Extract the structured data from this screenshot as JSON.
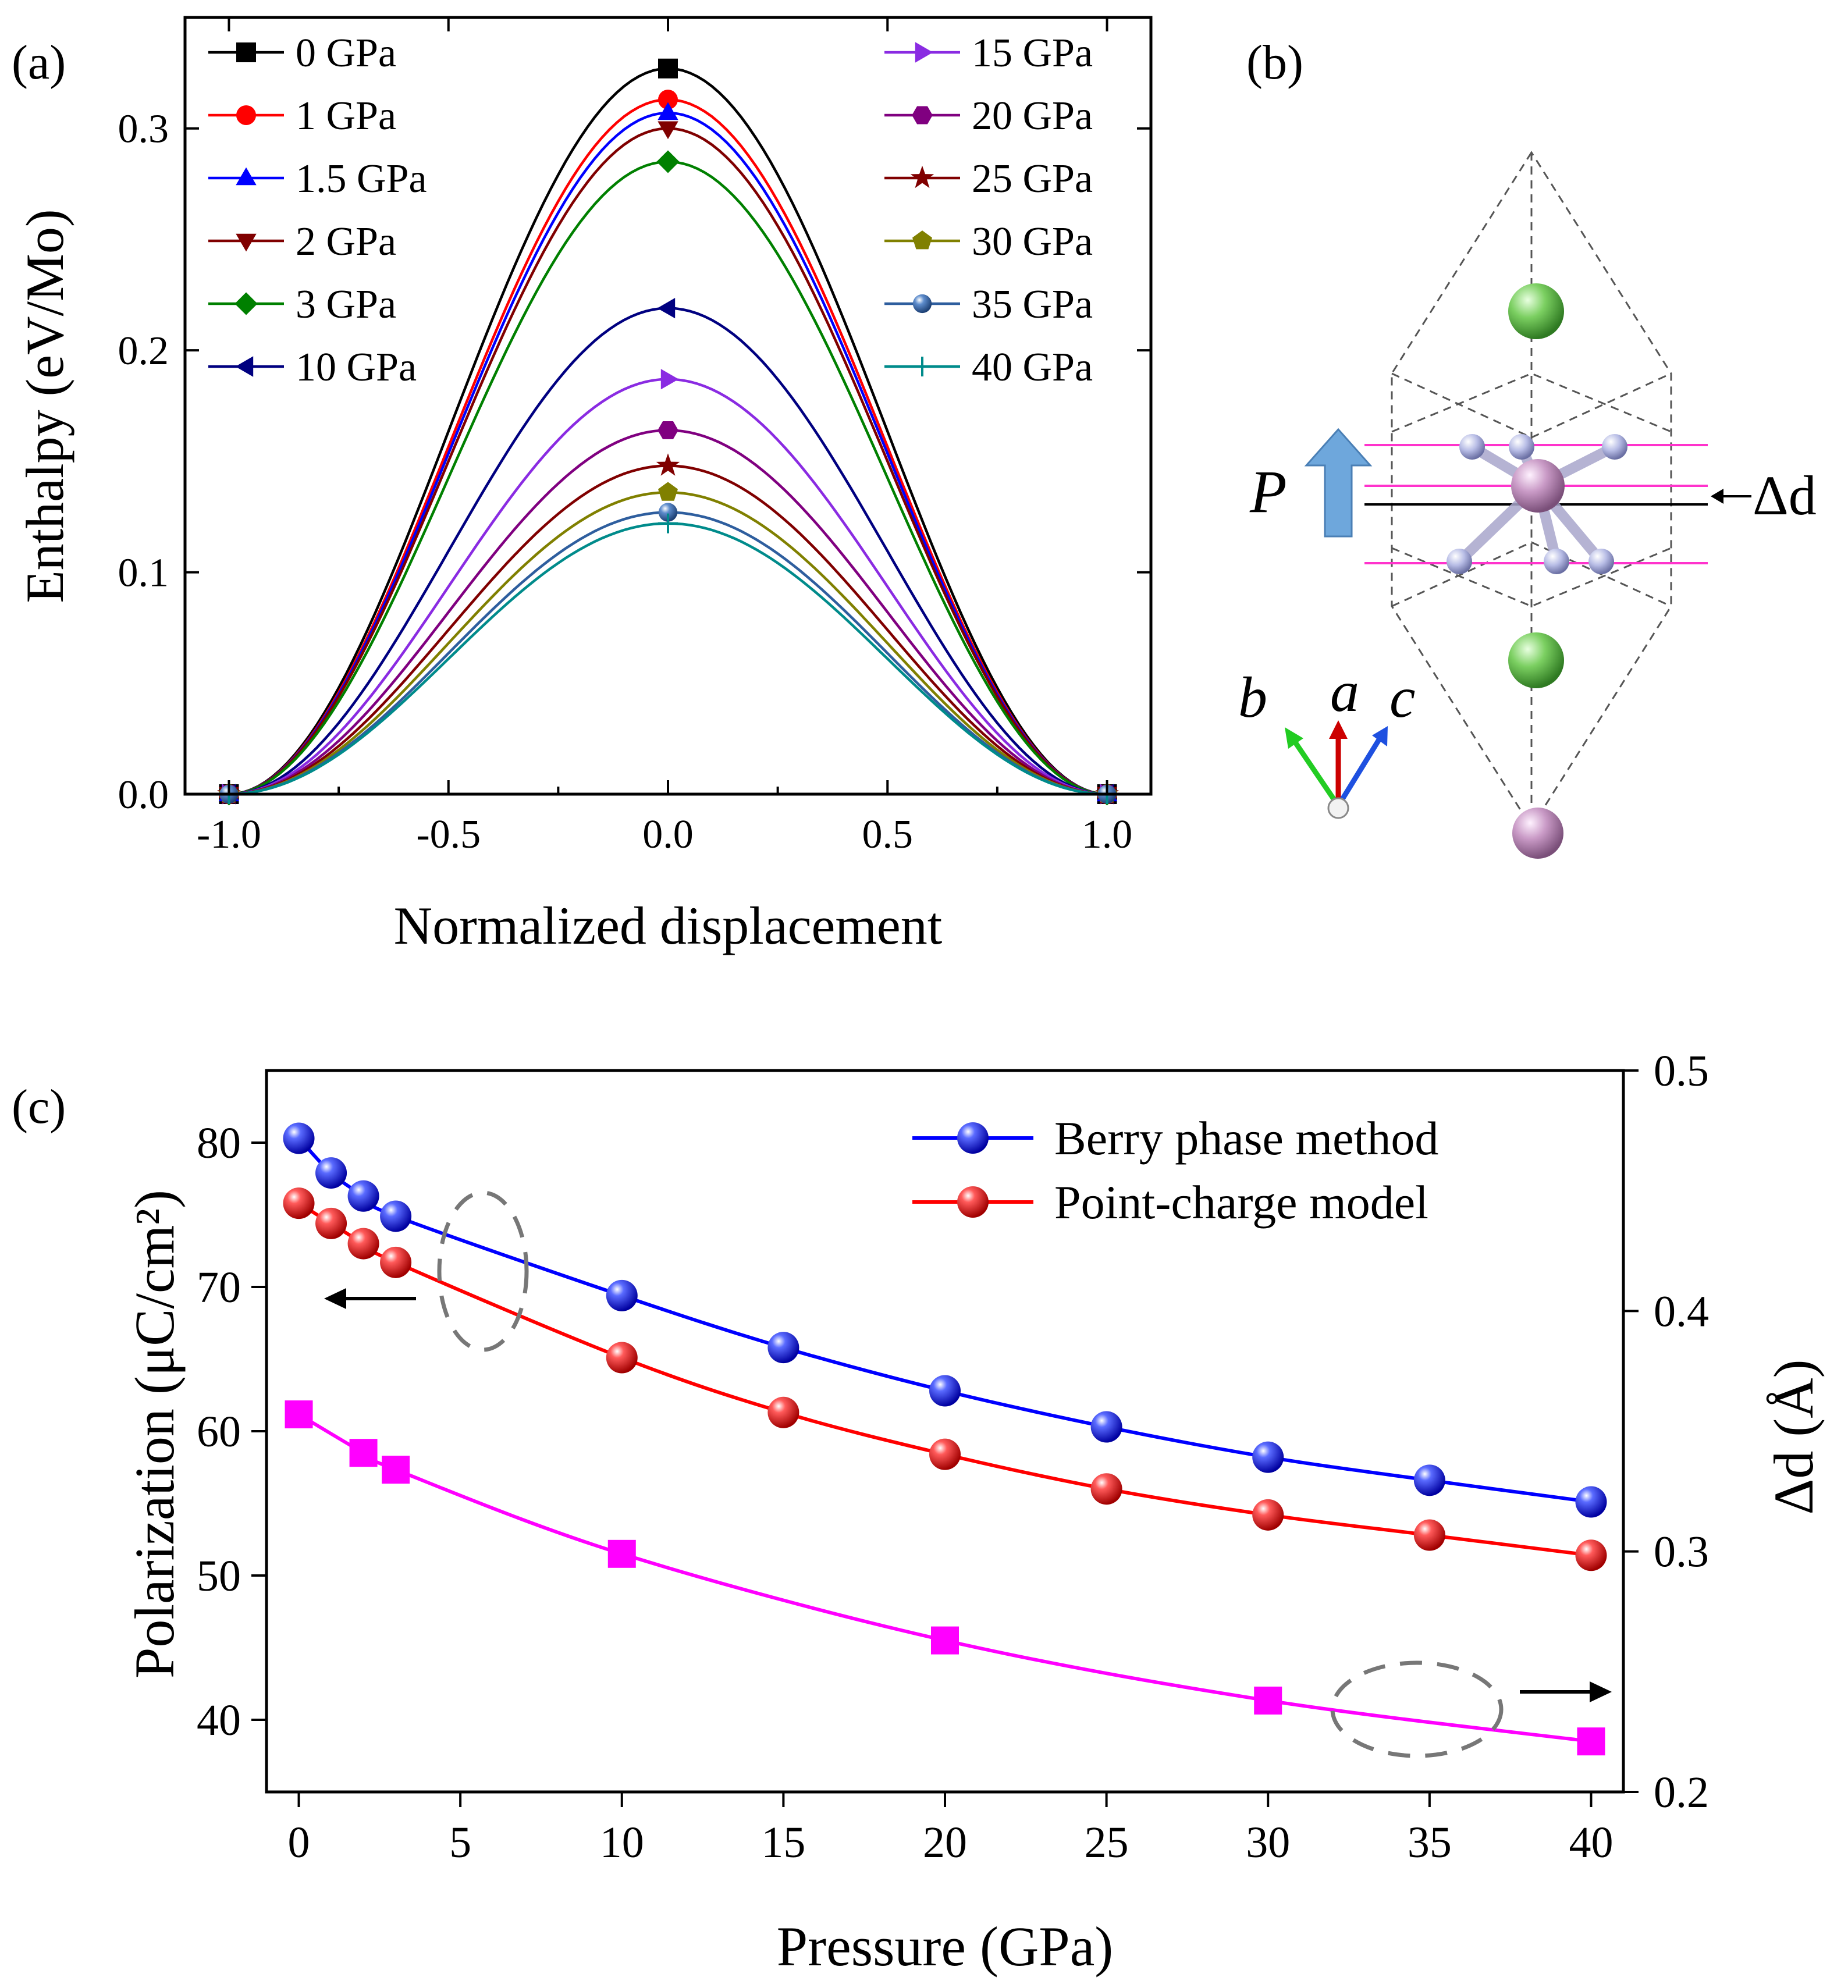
{
  "chart_data": [
    {
      "panel": "(a)",
      "type": "line",
      "xlabel": "Normalized displacement",
      "ylabel": "Enthalpy (eV/Mo)",
      "xlim": [
        -1.1,
        1.1
      ],
      "ylim": [
        0.0,
        0.35
      ],
      "xticks": [
        "-1.0",
        "-0.5",
        "0.0",
        "0.5",
        "1.0"
      ],
      "yticks": [
        "0.0",
        "0.1",
        "0.2",
        "0.3"
      ],
      "x": [
        -1.0,
        0.0,
        1.0
      ],
      "series": [
        {
          "name": "0 GPa",
          "peak": 0.327,
          "color": "#000000",
          "marker": "square"
        },
        {
          "name": "1 GPa",
          "peak": 0.313,
          "color": "#ff0000",
          "marker": "circle"
        },
        {
          "name": "1.5 GPa",
          "peak": 0.307,
          "color": "#0000ff",
          "marker": "triangle-up"
        },
        {
          "name": "2 GPa",
          "peak": 0.3,
          "color": "#800000",
          "marker": "triangle-down"
        },
        {
          "name": "3 GPa",
          "peak": 0.285,
          "color": "#008000",
          "marker": "diamond"
        },
        {
          "name": "10 GPa",
          "peak": 0.219,
          "color": "#000080",
          "marker": "triangle-left"
        },
        {
          "name": "15 GPa",
          "peak": 0.187,
          "color": "#8a2be2",
          "marker": "triangle-right"
        },
        {
          "name": "20 GPa",
          "peak": 0.164,
          "color": "#800080",
          "marker": "hexagon"
        },
        {
          "name": "25 GPa",
          "peak": 0.148,
          "color": "#800000",
          "marker": "star"
        },
        {
          "name": "30 GPa",
          "peak": 0.136,
          "color": "#808000",
          "marker": "pentagon"
        },
        {
          "name": "35 GPa",
          "peak": 0.127,
          "color": "#2e5e9e",
          "marker": "sphere"
        },
        {
          "name": "40 GPa",
          "peak": 0.122,
          "color": "#008b8b",
          "marker": "plus"
        }
      ]
    },
    {
      "panel": "(c)",
      "type": "line",
      "xlabel": "Pressure (GPa)",
      "ylabel": "Polarization (μC/cm²)",
      "y2label": "Δd (Å)",
      "xlim": [
        -1,
        41
      ],
      "ylim": [
        35,
        85
      ],
      "y2lim": [
        0.2,
        0.5
      ],
      "xticks": [
        "0",
        "5",
        "10",
        "15",
        "20",
        "25",
        "30",
        "35",
        "40"
      ],
      "yticks": [
        "40",
        "50",
        "60",
        "70",
        "80"
      ],
      "y2ticks": [
        "0.2",
        "0.3",
        "0.4",
        "0.5"
      ],
      "x": [
        0,
        1,
        2,
        3,
        10,
        15,
        20,
        25,
        30,
        35,
        40
      ],
      "series": [
        {
          "name": "Berry phase method",
          "axis": "left",
          "color": "#0000ff",
          "values": [
            80.3,
            77.9,
            76.3,
            74.9,
            69.4,
            65.8,
            62.8,
            60.3,
            58.2,
            56.6,
            55.1
          ]
        },
        {
          "name": "Point-charge model",
          "axis": "left",
          "color": "#ff0000",
          "values": [
            75.8,
            74.4,
            73.0,
            71.7,
            65.1,
            61.3,
            58.4,
            56.0,
            54.2,
            52.8,
            51.4
          ]
        },
        {
          "name": "Δd",
          "axis": "right",
          "color": "#ff00ff",
          "x": [
            0,
            2,
            3,
            10,
            20,
            30,
            40
          ],
          "values": [
            0.357,
            0.341,
            0.334,
            0.299,
            0.263,
            0.238,
            0.221
          ]
        }
      ]
    }
  ],
  "panel_a": {
    "label": "(a)"
  },
  "panel_b": {
    "label": "(b)",
    "polarization_label": "P",
    "displacement_label": "Δd",
    "axes": {
      "a": "a",
      "b": "b",
      "c": "c"
    },
    "colors": {
      "mo_atom": "#c9a7c7",
      "x_atom": "#6fbf5a",
      "ligand": "#b9bde0",
      "arrow": "#6ea7dc",
      "plane": "#ff33cc"
    }
  },
  "panel_c": {
    "label": "(c)"
  }
}
